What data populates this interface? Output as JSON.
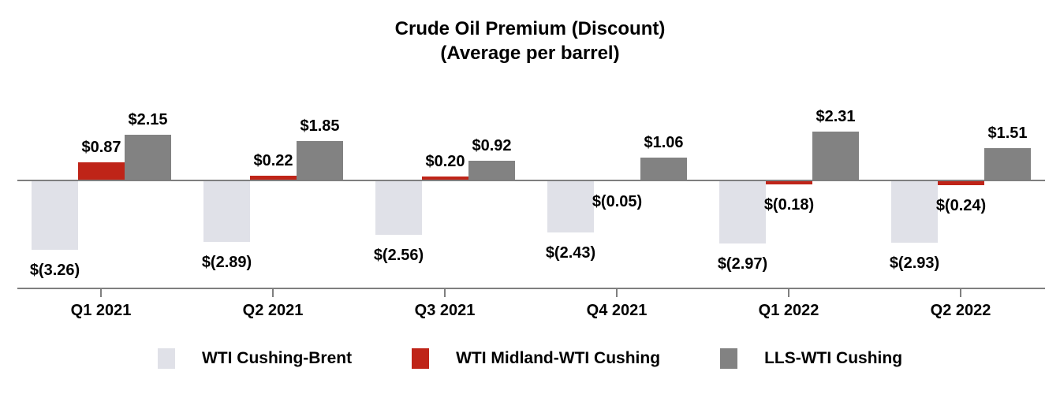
{
  "title": {
    "line1": "Crude Oil Premium (Discount)",
    "line2": "(Average per barrel)"
  },
  "chart_data": {
    "type": "bar",
    "title": "Crude Oil Premium (Discount) (Average per barrel)",
    "categories": [
      "Q1 2021",
      "Q2 2021",
      "Q3 2021",
      "Q4 2021",
      "Q1 2022",
      "Q2 2022"
    ],
    "series": [
      {
        "name": "WTI Cushing-Brent",
        "color": "#e0e1e8",
        "values": [
          -3.26,
          -2.89,
          -2.56,
          -2.43,
          -2.97,
          -2.93
        ],
        "labels": [
          "$(3.26)",
          "$(2.89)",
          "$(2.56)",
          "$(2.43)",
          "$(2.97)",
          "$(2.93)"
        ]
      },
      {
        "name": "WTI Midland-WTI Cushing",
        "color": "#bf2418",
        "values": [
          0.87,
          0.22,
          0.2,
          -0.05,
          -0.18,
          -0.24
        ],
        "labels": [
          "$0.87",
          "$0.22",
          "$0.20",
          "$(0.05)",
          "$(0.18)",
          "$(0.24)"
        ]
      },
      {
        "name": "LLS-WTI Cushing",
        "color": "#828282",
        "values": [
          2.15,
          1.85,
          0.92,
          1.06,
          2.31,
          1.51
        ],
        "labels": [
          "$2.15",
          "$1.85",
          "$0.92",
          "$1.06",
          "$2.31",
          "$1.51"
        ]
      }
    ],
    "xlabel": "",
    "ylabel": "",
    "baseline": 0,
    "grid": false,
    "legend_position": "bottom",
    "axis_color": "#7f7f7f",
    "text_color": "#000000",
    "background_color": "#ffffff"
  }
}
